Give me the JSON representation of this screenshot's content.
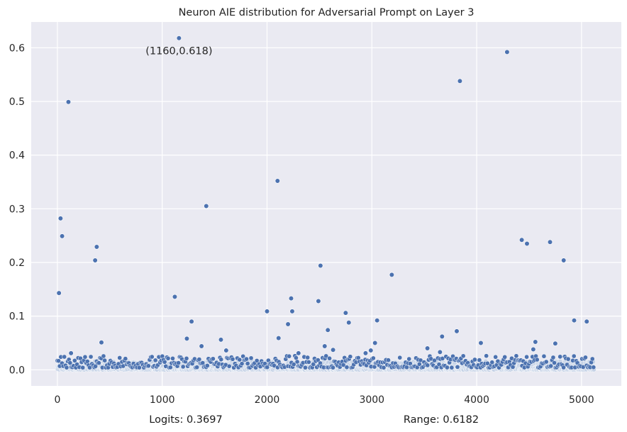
{
  "chart_data": {
    "type": "scatter",
    "title": "Neuron AIE distribution for Adversarial Prompt on Layer 3",
    "xlabel": "",
    "ylabel": "",
    "xlim": [
      -250,
      5380
    ],
    "ylim": [
      -0.03,
      0.648
    ],
    "xticks": [
      0,
      1000,
      2000,
      3000,
      4000,
      5000
    ],
    "yticks": [
      0.0,
      0.1,
      0.2,
      0.3,
      0.4,
      0.5,
      0.6
    ],
    "xtick_labels": [
      "0",
      "1000",
      "2000",
      "3000",
      "4000",
      "5000"
    ],
    "ytick_labels": [
      "0.0",
      "0.1",
      "0.2",
      "0.3",
      "0.4",
      "0.5",
      "0.6"
    ],
    "grid": true,
    "legend": "none",
    "neuron_count": 5120,
    "baseline_band": [
      0.0,
      0.03
    ],
    "points": [
      {
        "x": 15,
        "y": 0.143
      },
      {
        "x": 30,
        "y": 0.282
      },
      {
        "x": 45,
        "y": 0.249
      },
      {
        "x": 105,
        "y": 0.499
      },
      {
        "x": 130,
        "y": 0.031
      },
      {
        "x": 360,
        "y": 0.204
      },
      {
        "x": 375,
        "y": 0.229
      },
      {
        "x": 420,
        "y": 0.051
      },
      {
        "x": 1120,
        "y": 0.136
      },
      {
        "x": 1160,
        "y": 0.618
      },
      {
        "x": 1235,
        "y": 0.058
      },
      {
        "x": 1280,
        "y": 0.09
      },
      {
        "x": 1375,
        "y": 0.044
      },
      {
        "x": 1420,
        "y": 0.305
      },
      {
        "x": 1560,
        "y": 0.056
      },
      {
        "x": 1610,
        "y": 0.036
      },
      {
        "x": 2000,
        "y": 0.109
      },
      {
        "x": 2100,
        "y": 0.352
      },
      {
        "x": 2110,
        "y": 0.059
      },
      {
        "x": 2200,
        "y": 0.085
      },
      {
        "x": 2230,
        "y": 0.133
      },
      {
        "x": 2240,
        "y": 0.109
      },
      {
        "x": 2300,
        "y": 0.031
      },
      {
        "x": 2490,
        "y": 0.128
      },
      {
        "x": 2510,
        "y": 0.194
      },
      {
        "x": 2550,
        "y": 0.044
      },
      {
        "x": 2580,
        "y": 0.074
      },
      {
        "x": 2630,
        "y": 0.037
      },
      {
        "x": 2750,
        "y": 0.106
      },
      {
        "x": 2780,
        "y": 0.088
      },
      {
        "x": 2940,
        "y": 0.031
      },
      {
        "x": 2990,
        "y": 0.036
      },
      {
        "x": 3030,
        "y": 0.05
      },
      {
        "x": 3050,
        "y": 0.092
      },
      {
        "x": 3190,
        "y": 0.177
      },
      {
        "x": 3530,
        "y": 0.04
      },
      {
        "x": 3650,
        "y": 0.033
      },
      {
        "x": 3670,
        "y": 0.062
      },
      {
        "x": 3810,
        "y": 0.072
      },
      {
        "x": 3840,
        "y": 0.538
      },
      {
        "x": 4040,
        "y": 0.05
      },
      {
        "x": 4290,
        "y": 0.592
      },
      {
        "x": 4430,
        "y": 0.242
      },
      {
        "x": 4480,
        "y": 0.235
      },
      {
        "x": 4540,
        "y": 0.038
      },
      {
        "x": 4560,
        "y": 0.052
      },
      {
        "x": 4700,
        "y": 0.238
      },
      {
        "x": 4750,
        "y": 0.049
      },
      {
        "x": 4830,
        "y": 0.204
      },
      {
        "x": 4930,
        "y": 0.092
      },
      {
        "x": 5050,
        "y": 0.09
      }
    ],
    "annotations": [
      {
        "text": "(1160,0.618)",
        "x": 1160,
        "y": 0.618
      }
    ]
  },
  "footer": {
    "logits": "Logits: 0.3697",
    "range": "Range: 0.6182"
  },
  "colors": {
    "background": "#eaeaf2",
    "grid": "#ffffff",
    "point_fill": "#4c72b0",
    "point_fill_light": "#c5d2e6",
    "point_edge": "#ffffff"
  }
}
